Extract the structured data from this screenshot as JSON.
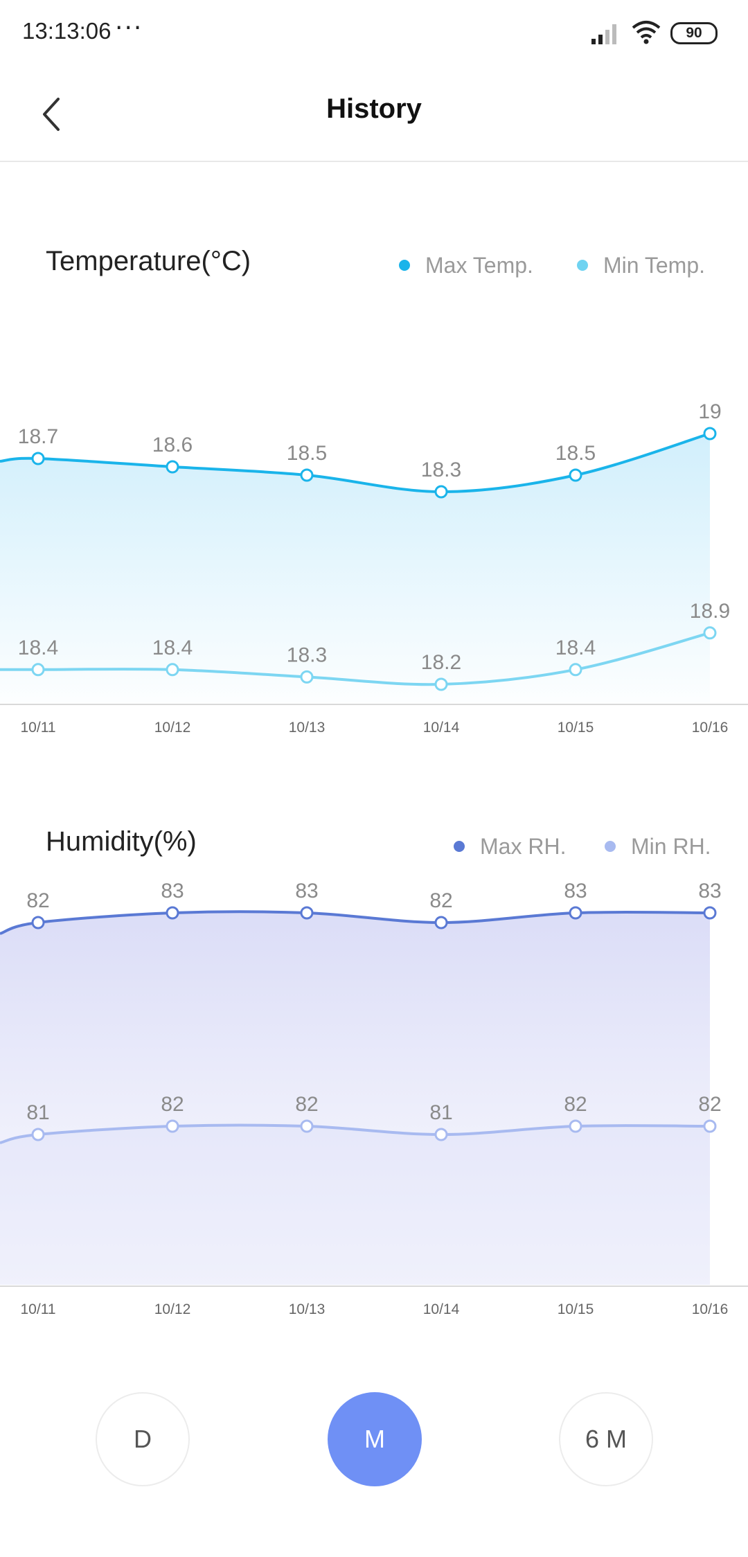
{
  "status_bar": {
    "time": "13:13:06",
    "more": "···",
    "battery": "90"
  },
  "header": {
    "title": "History",
    "back_icon": "chevron-left-icon"
  },
  "colors": {
    "temp_max": "#1ab4ea",
    "temp_min": "#7dd6f2",
    "rh_max": "#5a79d4",
    "rh_min": "#a8baf0",
    "active_button": "#6f90f5"
  },
  "temperature": {
    "title": "Temperature(°C)",
    "legend": [
      {
        "label": "Max Temp.",
        "color": "#1ab4ea"
      },
      {
        "label": "Min Temp.",
        "color": "#6fd3f1"
      }
    ]
  },
  "humidity": {
    "title": "Humidity(%)",
    "legend": [
      {
        "label": "Max RH.",
        "color": "#5a79d4"
      },
      {
        "label": "Min RH.",
        "color": "#a8baf0"
      }
    ]
  },
  "chart_data": [
    {
      "type": "line",
      "title": "Temperature(°C)",
      "categories": [
        "10/11",
        "10/12",
        "10/13",
        "10/14",
        "10/15",
        "10/16"
      ],
      "series": [
        {
          "name": "Max Temp.",
          "values": [
            18.7,
            18.6,
            18.5,
            18.3,
            18.5,
            19
          ]
        },
        {
          "name": "Min Temp.",
          "values": [
            18.4,
            18.4,
            18.3,
            18.2,
            18.4,
            18.9
          ]
        }
      ],
      "value_labels": {
        "max": [
          "18.7",
          "18.6",
          "18.5",
          "18.3",
          "18.5",
          "19"
        ],
        "min": [
          "18.4",
          "18.4",
          "18.3",
          "18.2",
          "18.4",
          "18.9"
        ]
      }
    },
    {
      "type": "area",
      "title": "Humidity(%)",
      "categories": [
        "10/11",
        "10/12",
        "10/13",
        "10/14",
        "10/15",
        "10/16"
      ],
      "series": [
        {
          "name": "Max RH.",
          "values": [
            82,
            83,
            83,
            82,
            83,
            83
          ]
        },
        {
          "name": "Min RH.",
          "values": [
            81,
            82,
            82,
            81,
            82,
            82
          ]
        }
      ],
      "value_labels": {
        "max": [
          "82",
          "83",
          "83",
          "82",
          "83",
          "83"
        ],
        "min": [
          "81",
          "82",
          "82",
          "81",
          "82",
          "82"
        ]
      }
    }
  ],
  "range_buttons": [
    {
      "label": "D",
      "active": false
    },
    {
      "label": "M",
      "active": true
    },
    {
      "label": "6 M",
      "active": false
    }
  ]
}
